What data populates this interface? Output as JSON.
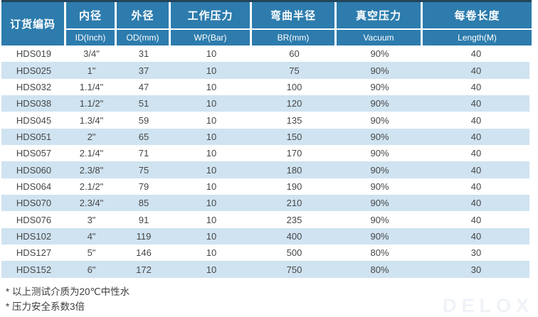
{
  "table": {
    "columns": [
      {
        "zh": "订货编码",
        "en": ""
      },
      {
        "zh": "内径",
        "en": "ID(Inch)"
      },
      {
        "zh": "外径",
        "en": "OD(mm)"
      },
      {
        "zh": "工作压力",
        "en": "WP(Bar)"
      },
      {
        "zh": "弯曲半径",
        "en": "BR(mm)"
      },
      {
        "zh": "真空压力",
        "en": "Vacuum"
      },
      {
        "zh": "每卷长度",
        "en": "Length(M)"
      }
    ],
    "rows": [
      [
        "HDS019",
        "3/4\"",
        "31",
        "10",
        "60",
        "90%",
        "40"
      ],
      [
        "HDS025",
        "1\"",
        "37",
        "10",
        "75",
        "90%",
        "40"
      ],
      [
        "HDS032",
        "1.1/4\"",
        "47",
        "10",
        "100",
        "90%",
        "40"
      ],
      [
        "HDS038",
        "1.1/2\"",
        "51",
        "10",
        "120",
        "90%",
        "40"
      ],
      [
        "HDS045",
        "1.3/4\"",
        "59",
        "10",
        "135",
        "90%",
        "40"
      ],
      [
        "HDS051",
        "2\"",
        "65",
        "10",
        "150",
        "90%",
        "40"
      ],
      [
        "HDS057",
        "2.1/4\"",
        "71",
        "10",
        "170",
        "90%",
        "40"
      ],
      [
        "HDS060",
        "2.3/8\"",
        "75",
        "10",
        "180",
        "90%",
        "40"
      ],
      [
        "HDS064",
        "2.1/2\"",
        "79",
        "10",
        "190",
        "90%",
        "40"
      ],
      [
        "HDS070",
        "2.3/4\"",
        "85",
        "10",
        "210",
        "90%",
        "40"
      ],
      [
        "HDS076",
        "3\"",
        "91",
        "10",
        "235",
        "90%",
        "40"
      ],
      [
        "HDS102",
        "4\"",
        "119",
        "10",
        "400",
        "90%",
        "40"
      ],
      [
        "HDS127",
        "5\"",
        "146",
        "10",
        "500",
        "80%",
        "30"
      ],
      [
        "HDS152",
        "6\"",
        "172",
        "10",
        "750",
        "80%",
        "30"
      ]
    ]
  },
  "footnotes": {
    "line1": "* 以上测试介质为20℃中性水",
    "line2": "* 压力安全系数3倍"
  },
  "watermark": "DELOX",
  "colors": {
    "header_blue": "#2d7cad",
    "header_top_border": "#23455c",
    "stripe_blue": "#cfe3f1",
    "body_text": "#474747"
  }
}
